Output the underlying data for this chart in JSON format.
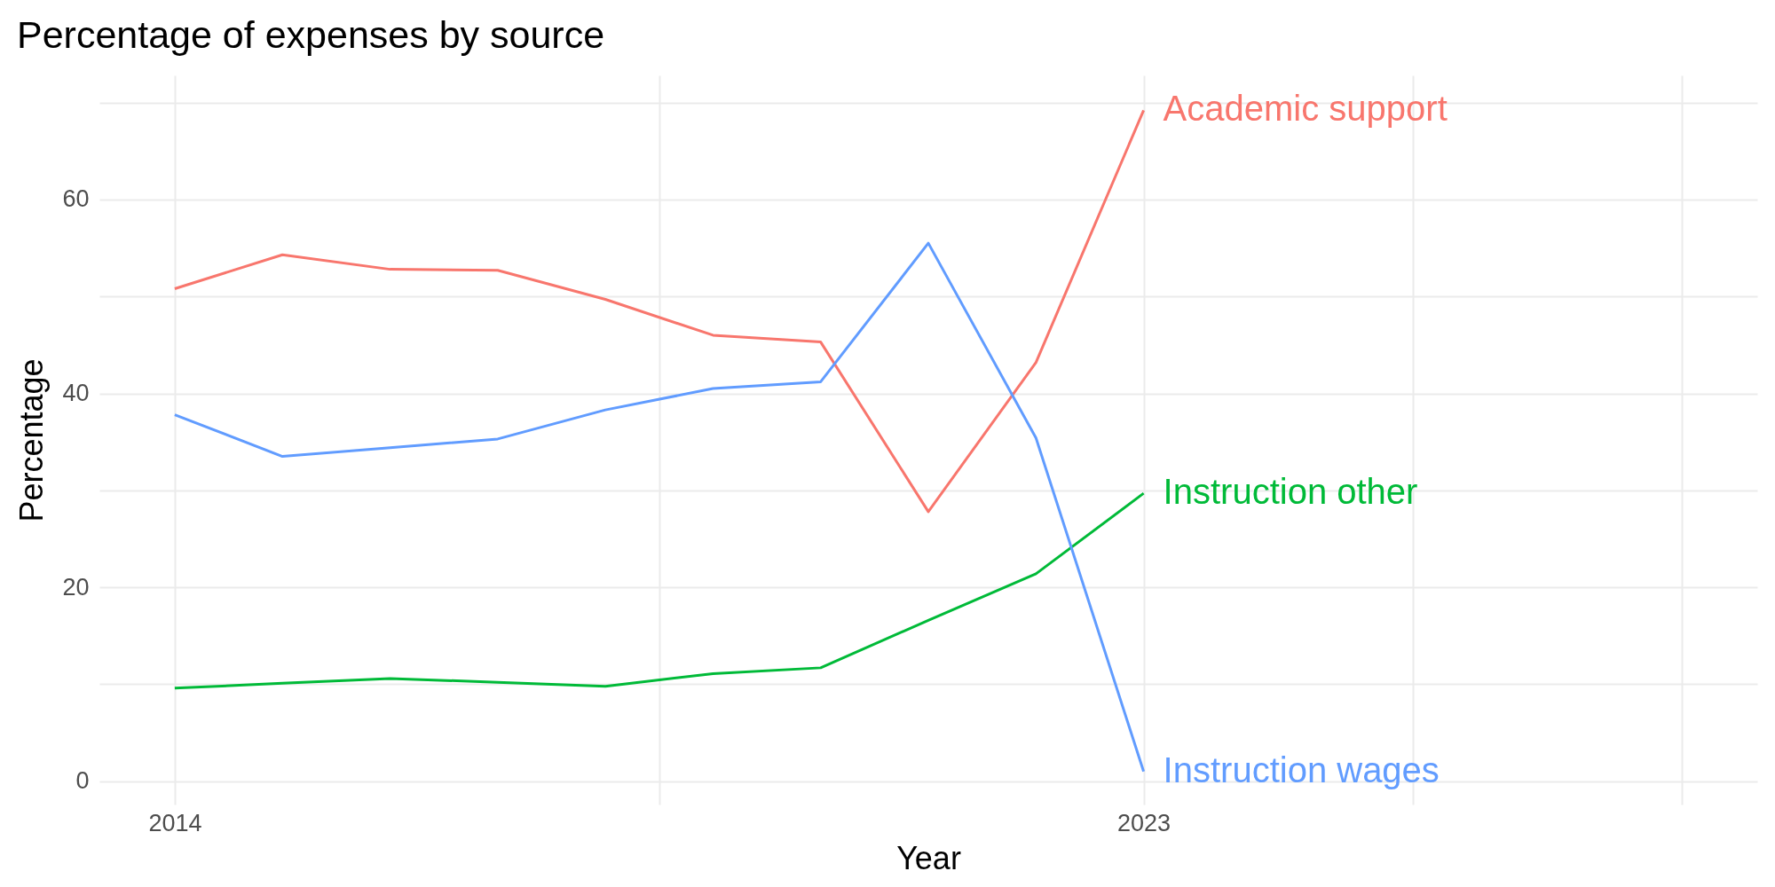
{
  "chart_data": {
    "type": "line",
    "title": "Percentage of expenses by source",
    "xlabel": "Year",
    "ylabel": "Percentage",
    "x": [
      2014,
      2015,
      2016,
      2017,
      2018,
      2019,
      2020,
      2021,
      2022,
      2023
    ],
    "series": [
      {
        "name": "Academic support",
        "color": "#f8766d",
        "values": [
          50.8,
          54.3,
          52.8,
          52.7,
          49.7,
          46.0,
          45.3,
          27.8,
          43.2,
          69.2
        ]
      },
      {
        "name": "Instruction other",
        "color": "#00ba38",
        "values": [
          9.6,
          10.1,
          10.6,
          10.2,
          9.8,
          11.1,
          11.7,
          16.6,
          21.4,
          29.7
        ]
      },
      {
        "name": "Instruction wages",
        "color": "#619cff",
        "values": [
          37.8,
          33.5,
          34.4,
          35.3,
          38.3,
          40.5,
          41.2,
          55.5,
          35.4,
          1.0
        ]
      }
    ],
    "xlim": [
      2013.3,
      2028.7
    ],
    "xticks": [
      2014,
      {
        "value": 2018.5,
        "label": null
      },
      2023,
      {
        "value": 2025.5,
        "label": null
      },
      {
        "value": 2028,
        "label": null
      }
    ],
    "ylim": [
      -2.4,
      72.8
    ],
    "yticks": [
      0,
      {
        "value": 10,
        "label": null
      },
      20,
      {
        "value": 30,
        "label": null
      },
      40,
      {
        "value": 50,
        "label": null
      },
      60,
      {
        "value": 70,
        "label": null
      }
    ],
    "grid": true,
    "legend": false,
    "marker": "none",
    "line_style": "solid"
  }
}
